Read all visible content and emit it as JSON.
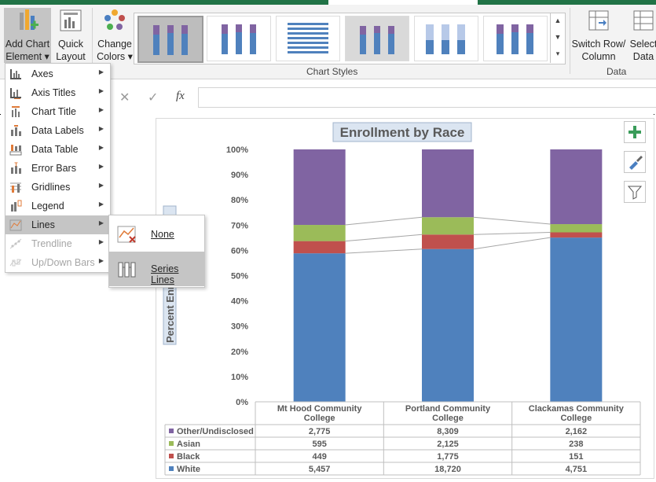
{
  "ribbon": {
    "add_chart_element": {
      "line1": "Add Chart",
      "line2": "Element"
    },
    "quick_layout": {
      "line1": "Quick",
      "line2": "Layout"
    },
    "change_colors": {
      "line1": "Change",
      "line2": "Colors"
    },
    "chart_styles_label": "Chart Styles",
    "switch_row_column": {
      "line1": "Switch Row/",
      "line2": "Column"
    },
    "select_data": {
      "line1": "Select",
      "line2": "Data"
    },
    "data_group_label": "Data"
  },
  "formula_bar": {
    "cancel": "✕",
    "enter": "✓",
    "fx": "fx",
    "value": ""
  },
  "menu": {
    "items": [
      {
        "label": "Axes",
        "icon": "axes-icon",
        "enabled": true
      },
      {
        "label": "Axis Titles",
        "icon": "axis-titles-icon",
        "enabled": true
      },
      {
        "label": "Chart Title",
        "icon": "chart-title-icon",
        "enabled": true
      },
      {
        "label": "Data Labels",
        "icon": "data-labels-icon",
        "enabled": true
      },
      {
        "label": "Data Table",
        "icon": "data-table-icon",
        "enabled": true
      },
      {
        "label": "Error Bars",
        "icon": "error-bars-icon",
        "enabled": true
      },
      {
        "label": "Gridlines",
        "icon": "gridlines-icon",
        "enabled": true
      },
      {
        "label": "Legend",
        "icon": "legend-icon",
        "enabled": true
      },
      {
        "label": "Lines",
        "icon": "lines-icon",
        "enabled": true,
        "highlighted": true
      },
      {
        "label": "Trendline",
        "icon": "trendline-icon",
        "enabled": false
      },
      {
        "label": "Up/Down Bars",
        "icon": "up-down-bars-icon",
        "enabled": false
      }
    ],
    "submenu": {
      "items": [
        {
          "label": "None",
          "icon": "no-lines-icon"
        },
        {
          "label": "Series Lines",
          "icon": "series-lines-icon",
          "highlighted": true
        }
      ]
    }
  },
  "chart_data": {
    "type": "bar",
    "stacked": "percent",
    "title": "Enrollment by Race",
    "ylabel": "Percent Enr",
    "ylim": [
      0,
      100
    ],
    "yticks": [
      "0%",
      "10%",
      "20%",
      "30%",
      "40%",
      "50%",
      "60%",
      "70%",
      "80%",
      "90%",
      "100%"
    ],
    "categories": [
      "Mt Hood Community College",
      "Portland Community College",
      "Clackamas Community College"
    ],
    "series": [
      {
        "name": "White",
        "color": "#4f81bd",
        "values": [
          5457,
          18720,
          4751
        ],
        "display": [
          "5,457",
          "18,720",
          "4,751"
        ]
      },
      {
        "name": "Black",
        "color": "#c0504d",
        "values": [
          449,
          1775,
          151
        ],
        "display": [
          "449",
          "1,775",
          "151"
        ]
      },
      {
        "name": "Asian",
        "color": "#9bbb59",
        "values": [
          595,
          2125,
          238
        ],
        "display": [
          "595",
          "2,125",
          "238"
        ]
      },
      {
        "name": "Other/Undisclosed",
        "color": "#8064a2",
        "values": [
          2775,
          8309,
          2162
        ],
        "display": [
          "2,775",
          "8,309",
          "2,162"
        ]
      }
    ],
    "table_order": [
      "Other/Undisclosed",
      "Asian",
      "Black",
      "White"
    ],
    "series_lines": true,
    "data_table": true,
    "legend": "data-table",
    "grid": false
  },
  "chart_buttons": {
    "add": "chart-elements-plus-icon",
    "style": "chart-styles-brush-icon",
    "filter": "chart-filters-funnel-icon"
  }
}
